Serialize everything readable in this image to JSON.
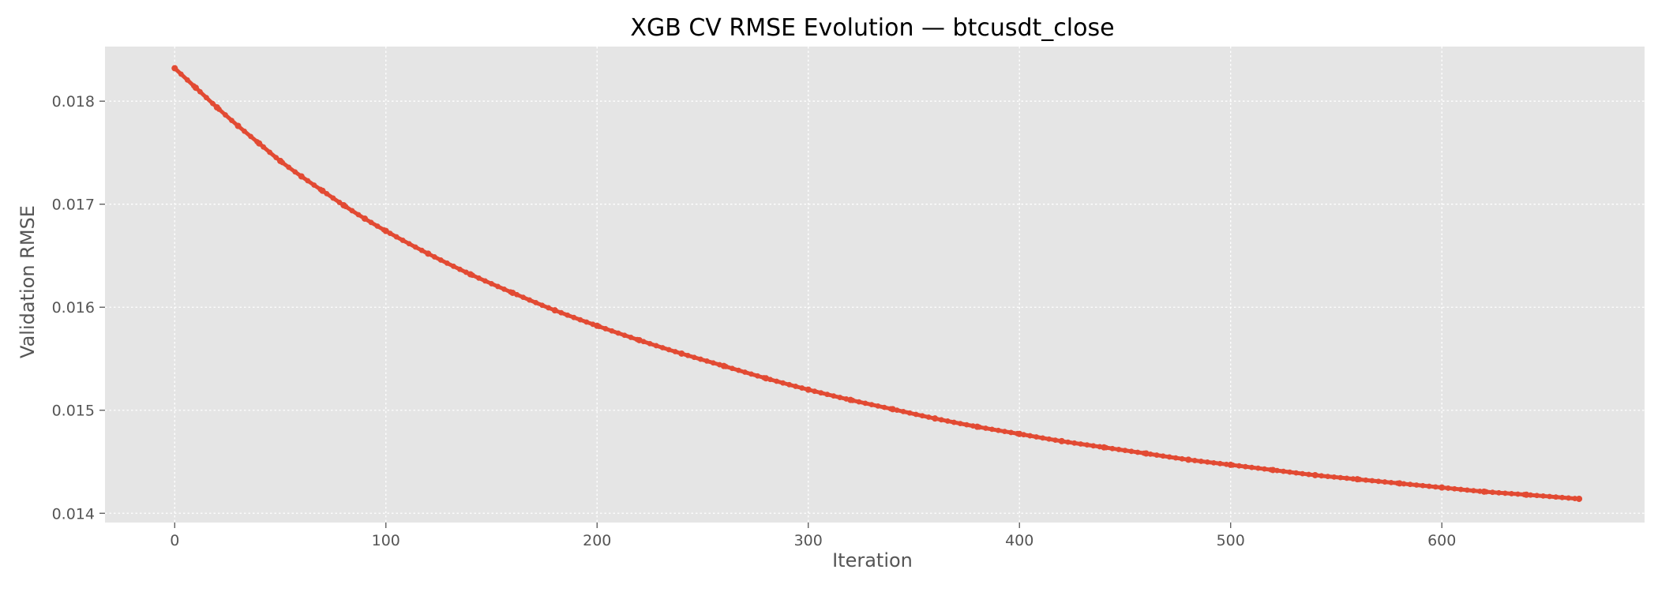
{
  "chart_data": {
    "type": "line",
    "title": "XGB CV RMSE Evolution — btcusdt_close",
    "xlabel": "Iteration",
    "ylabel": "Validation RMSE",
    "xlim": [
      -33,
      696
    ],
    "ylim": [
      0.01391,
      0.01853
    ],
    "xticks": [
      0,
      100,
      200,
      300,
      400,
      500,
      600
    ],
    "yticks": [
      0.014,
      0.015,
      0.016,
      0.017,
      0.018
    ],
    "xtick_labels": [
      "0",
      "100",
      "200",
      "300",
      "400",
      "500",
      "600"
    ],
    "ytick_labels": [
      "0.014",
      "0.015",
      "0.016",
      "0.017",
      "0.018"
    ],
    "grid": true,
    "background": "#e5e5e5",
    "colors": {
      "series": "#e24a33",
      "grid": "#ffffff",
      "text": "#555555"
    },
    "series": [
      {
        "marker": "circle",
        "x": [
          0,
          10,
          20,
          30,
          40,
          50,
          60,
          70,
          80,
          90,
          100,
          120,
          140,
          160,
          180,
          200,
          220,
          240,
          260,
          280,
          300,
          320,
          340,
          360,
          380,
          400,
          420,
          440,
          460,
          480,
          500,
          520,
          540,
          560,
          580,
          600,
          620,
          640,
          665
        ],
        "values": [
          0.01832,
          0.01813,
          0.01794,
          0.01776,
          0.01759,
          0.01742,
          0.01727,
          0.01713,
          0.01699,
          0.01686,
          0.01674,
          0.01652,
          0.01632,
          0.01614,
          0.01597,
          0.01582,
          0.01568,
          0.01555,
          0.01543,
          0.01531,
          0.0152,
          0.0151,
          0.01501,
          0.01492,
          0.01484,
          0.01477,
          0.0147,
          0.01464,
          0.01458,
          0.01452,
          0.01447,
          0.01442,
          0.01437,
          0.01433,
          0.01429,
          0.01425,
          0.01421,
          0.01418,
          0.01414
        ]
      }
    ]
  }
}
